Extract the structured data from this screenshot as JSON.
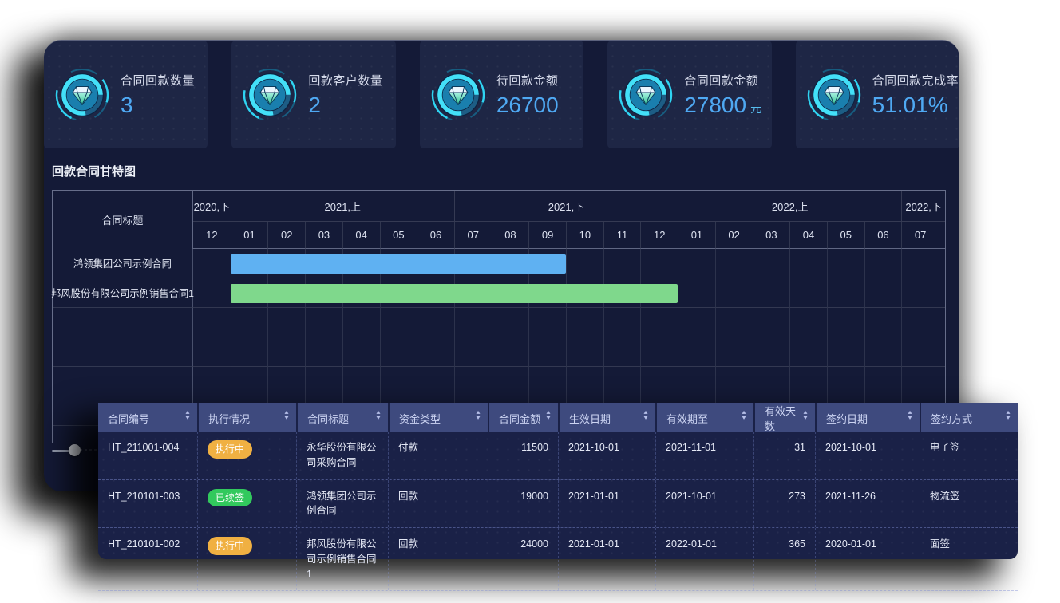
{
  "stats": [
    {
      "label": "合同回款数量",
      "value": "3",
      "unit": ""
    },
    {
      "label": "回款客户数量",
      "value": "2",
      "unit": ""
    },
    {
      "label": "待回款金额",
      "value": "26700",
      "unit": ""
    },
    {
      "label": "合同回款金额",
      "value": "27800",
      "unit": "元"
    },
    {
      "label": "合同回款完成率",
      "value": "51.01%",
      "unit": ""
    }
  ],
  "gantt": {
    "title": "回款合同甘特图",
    "label_column_header": "合同标题",
    "periods": [
      {
        "label": "2020,下",
        "months": [
          "12"
        ]
      },
      {
        "label": "2021,上",
        "months": [
          "01",
          "02",
          "03",
          "04",
          "05",
          "06"
        ]
      },
      {
        "label": "2021,下",
        "months": [
          "07",
          "08",
          "09",
          "10",
          "11",
          "12"
        ]
      },
      {
        "label": "2022,上",
        "months": [
          "01",
          "02",
          "03",
          "04",
          "05",
          "06"
        ]
      },
      {
        "label": "2022,下",
        "months": [
          "07"
        ]
      }
    ],
    "rows": [
      {
        "title": "鸿领集团公司示例合同",
        "bar": {
          "start_month_index": 1,
          "span_months": 9,
          "color": "#5fb1f2"
        }
      },
      {
        "title": "邦风股份有限公司示例销售合同1",
        "bar": {
          "start_month_index": 1,
          "span_months": 12,
          "color": "#7fd88c"
        }
      }
    ],
    "empty_row_count": 5
  },
  "table": {
    "columns": [
      {
        "key": "contract_no",
        "label": "合同编号",
        "align": "left"
      },
      {
        "key": "status",
        "label": "执行情况",
        "align": "left"
      },
      {
        "key": "title",
        "label": "合同标题",
        "align": "left"
      },
      {
        "key": "fund_type",
        "label": "资金类型",
        "align": "left"
      },
      {
        "key": "amount",
        "label": "合同金额",
        "align": "right"
      },
      {
        "key": "effective_date",
        "label": "生效日期",
        "align": "left"
      },
      {
        "key": "valid_until",
        "label": "有效期至",
        "align": "left"
      },
      {
        "key": "valid_days",
        "label": "有效天数",
        "align": "right"
      },
      {
        "key": "sign_date",
        "label": "签约日期",
        "align": "left"
      },
      {
        "key": "sign_method",
        "label": "签约方式",
        "align": "left"
      }
    ],
    "rows": [
      {
        "contract_no": "HT_211001-004",
        "status": {
          "label": "执行中",
          "color": "#f0b042"
        },
        "title": "永华股份有限公司采购合同",
        "fund_type": "付款",
        "amount": "11500",
        "effective_date": "2021-10-01",
        "valid_until": "2021-11-01",
        "valid_days": "31",
        "sign_date": "2021-10-01",
        "sign_method": "电子签"
      },
      {
        "contract_no": "HT_210101-003",
        "status": {
          "label": "已续签",
          "color": "#32c95d"
        },
        "title": "鸿领集团公司示例合同",
        "fund_type": "回款",
        "amount": "19000",
        "effective_date": "2021-01-01",
        "valid_until": "2021-10-01",
        "valid_days": "273",
        "sign_date": "2021-11-26",
        "sign_method": "物流签"
      },
      {
        "contract_no": "HT_210101-002",
        "status": {
          "label": "执行中",
          "color": "#f0b042"
        },
        "title": "邦风股份有限公司示例销售合同1",
        "fund_type": "回款",
        "amount": "24000",
        "effective_date": "2021-01-01",
        "valid_until": "2022-01-01",
        "valid_days": "365",
        "sign_date": "2020-01-01",
        "sign_method": "面签"
      }
    ]
  },
  "colors": {
    "accent_blue": "#4fa9f3",
    "bar_blue": "#5fb1f2",
    "bar_green": "#7fd88c",
    "pill_orange": "#f0b042",
    "pill_green": "#32c95d",
    "table_header": "#3e4a7e",
    "panel_bg": "#141a37",
    "card_bg": "#1e2645"
  }
}
